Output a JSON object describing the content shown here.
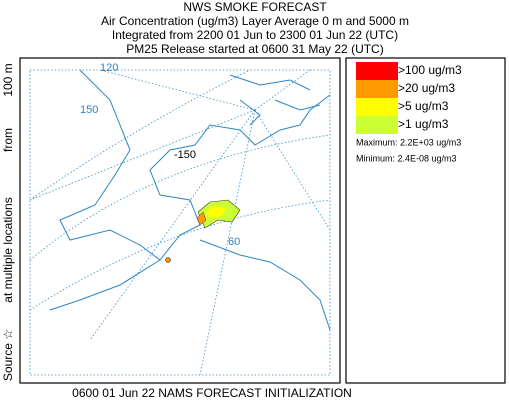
{
  "header": {
    "title": "NWS SMOKE FORECAST",
    "lines": [
      "Air Concentration (ug/m3) Layer Average    0 m and  5000 m",
      "Integrated from 2200 01 Jun to 2300 01 Jun 22 (UTC)",
      "PM25 Release started at 0600 31 May 22 (UTC)"
    ]
  },
  "side_label": [
    "Source ☆",
    "at multiple locations",
    "from",
    "100 m"
  ],
  "map": {
    "labels": [
      "120",
      "150",
      "-150",
      "60"
    ]
  },
  "legend": {
    "entries": [
      {
        "label": ">100 ug/m3",
        "color": "#ff0000"
      },
      {
        "label": ">20 ug/m3",
        "color": "#ff9900"
      },
      {
        "label": ">5 ug/m3",
        "color": "#ffff00"
      },
      {
        "label": ">1 ug/m3",
        "color": "#ccff33"
      }
    ],
    "maximum": "Maximum: 2.2E+03 ug/m3",
    "minimum": "Minimum: 2.4E-08 ug/m3"
  },
  "footer": "0600 01 Jun 22 NAMS FORECAST INITIALIZATION"
}
